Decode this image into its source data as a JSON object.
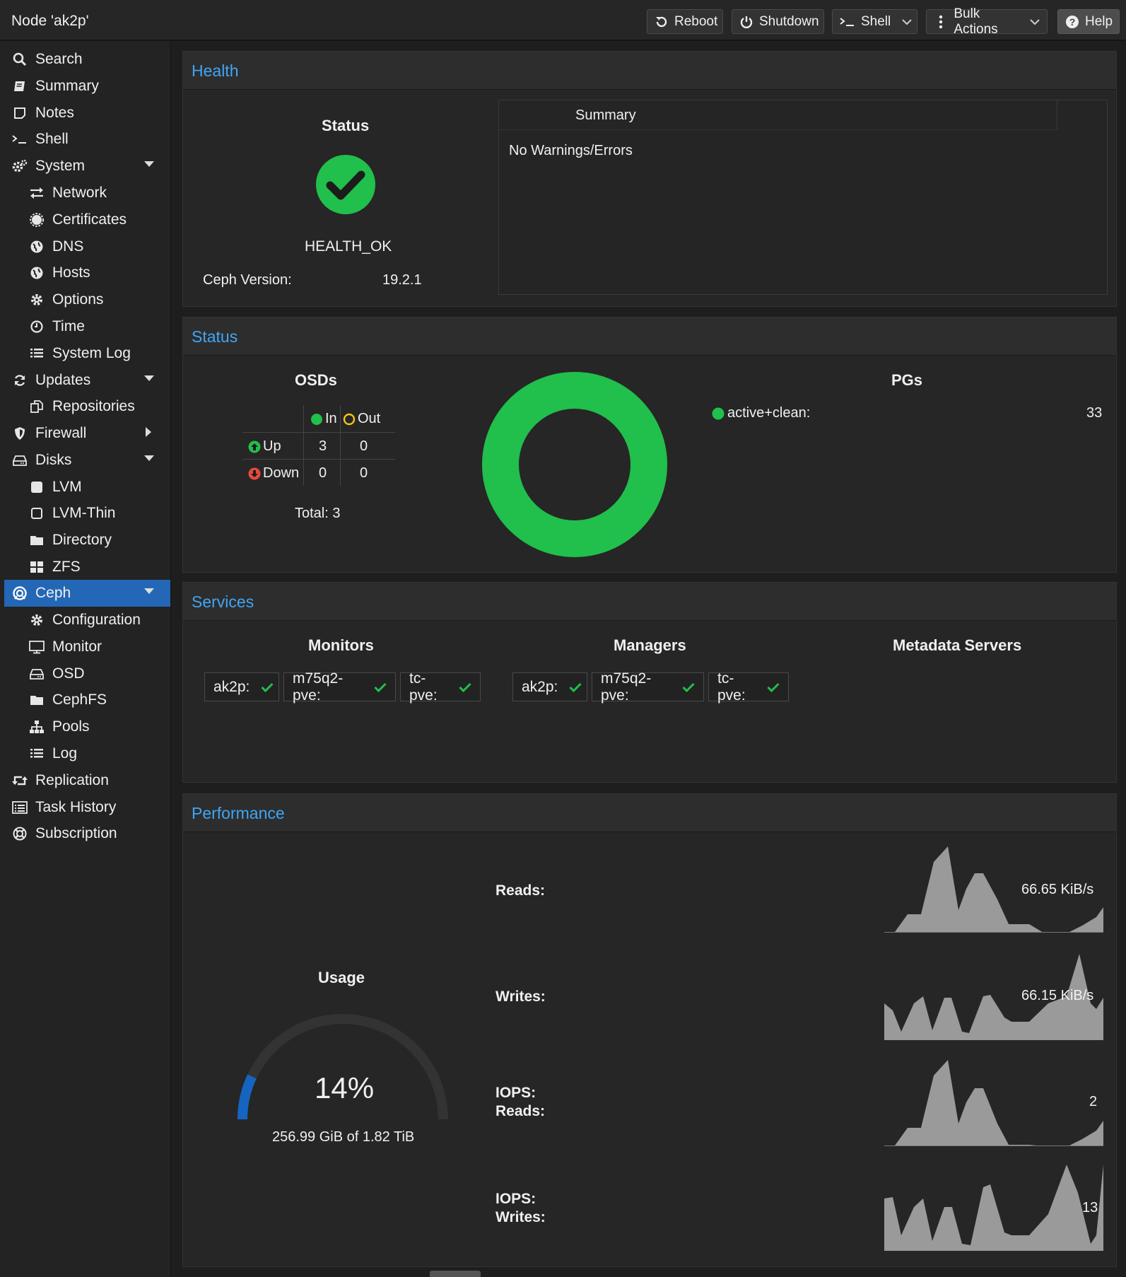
{
  "header": {
    "title": "Node 'ak2p'",
    "buttons": {
      "reboot": "Reboot",
      "shutdown": "Shutdown",
      "shell": "Shell",
      "bulk_actions": "Bulk Actions",
      "help": "Help"
    }
  },
  "sidebar": {
    "items": [
      {
        "label": "Search",
        "icon": "search-icon"
      },
      {
        "label": "Summary",
        "icon": "book-icon"
      },
      {
        "label": "Notes",
        "icon": "note-icon"
      },
      {
        "label": "Shell",
        "icon": "terminal-icon"
      },
      {
        "label": "System",
        "icon": "gears-icon",
        "expanded": true
      },
      {
        "label": "Network",
        "icon": "exchange-icon"
      },
      {
        "label": "Certificates",
        "icon": "certificate-icon"
      },
      {
        "label": "DNS",
        "icon": "globe-icon"
      },
      {
        "label": "Hosts",
        "icon": "globe-icon"
      },
      {
        "label": "Options",
        "icon": "gear-icon"
      },
      {
        "label": "Time",
        "icon": "clock-icon"
      },
      {
        "label": "System Log",
        "icon": "list-icon"
      },
      {
        "label": "Updates",
        "icon": "refresh-icon",
        "expanded": true
      },
      {
        "label": "Repositories",
        "icon": "files-icon"
      },
      {
        "label": "Firewall",
        "icon": "shield-icon",
        "expanded": false
      },
      {
        "label": "Disks",
        "icon": "hdd-icon",
        "expanded": true
      },
      {
        "label": "LVM",
        "icon": "square-icon"
      },
      {
        "label": "LVM-Thin",
        "icon": "square-outline-icon"
      },
      {
        "label": "Directory",
        "icon": "folder-icon"
      },
      {
        "label": "ZFS",
        "icon": "grid-icon"
      },
      {
        "label": "Ceph",
        "icon": "ceph-icon",
        "expanded": true,
        "active": true
      },
      {
        "label": "Configuration",
        "icon": "gear-icon"
      },
      {
        "label": "Monitor",
        "icon": "desktop-icon"
      },
      {
        "label": "OSD",
        "icon": "hdd-icon"
      },
      {
        "label": "CephFS",
        "icon": "folder-icon"
      },
      {
        "label": "Pools",
        "icon": "sitemap-icon"
      },
      {
        "label": "Log",
        "icon": "list-icon"
      },
      {
        "label": "Replication",
        "icon": "retweet-icon"
      },
      {
        "label": "Task History",
        "icon": "list-alt-icon"
      },
      {
        "label": "Subscription",
        "icon": "support-icon"
      }
    ]
  },
  "health": {
    "title": "Health",
    "status_heading": "Status",
    "status_text": "HEALTH_OK",
    "version_label": "Ceph Version:",
    "version_value": "19.2.1",
    "summary_header": "Summary",
    "summary_text": "No Warnings/Errors",
    "status_color": "#21bf4b"
  },
  "status": {
    "title": "Status",
    "osds": {
      "heading": "OSDs",
      "col_in": "In",
      "col_out": "Out",
      "row_up": "Up",
      "row_down": "Down",
      "up_in": "3",
      "up_out": "0",
      "down_in": "0",
      "down_out": "0",
      "total": "Total: 3"
    },
    "pgs": {
      "heading": "PGs",
      "state": "active+clean:",
      "count": "33",
      "color": "#21bf4b"
    }
  },
  "services": {
    "title": "Services",
    "monitors_heading": "Monitors",
    "managers_heading": "Managers",
    "mds_heading": "Metadata Servers",
    "monitors": [
      "ak2p:",
      "m75q2-pve:",
      "tc-pve:"
    ],
    "managers": [
      "ak2p:",
      "m75q2-pve:",
      "tc-pve:"
    ]
  },
  "performance": {
    "title": "Performance",
    "usage_heading": "Usage",
    "usage_percent_label": "14%",
    "usage_fraction": 0.14,
    "usage_detail": "256.99 GiB of 1.82 TiB",
    "gauge_color": "#1565c0",
    "metrics": [
      {
        "label": "Reads:",
        "value": "66.65 KiB/s"
      },
      {
        "label": "Writes:",
        "value": "66.15 KiB/s"
      },
      {
        "label": "IOPS:\nReads:",
        "value": "2"
      },
      {
        "label": "IOPS:\nWrites:",
        "value": "13"
      }
    ]
  }
}
